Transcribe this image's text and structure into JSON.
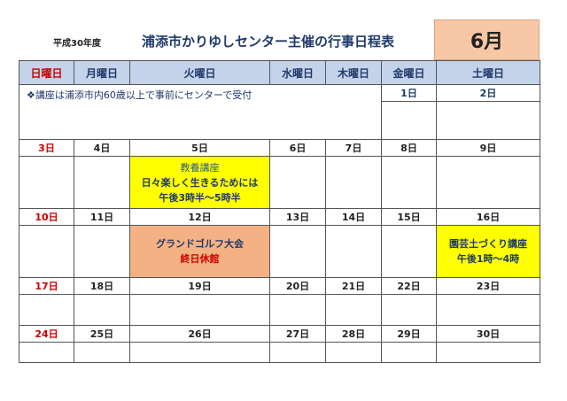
{
  "header": {
    "era": "平成30年度",
    "title": "浦添市かりゆしセンター主催の行事日程表",
    "month": "6月"
  },
  "weekdays": [
    "日曜日",
    "月曜日",
    "火曜日",
    "水曜日",
    "木曜日",
    "金曜日",
    "土曜日"
  ],
  "notice": "❖講座は浦添市内60歳以上で事前にセンターで受付",
  "weeks": [
    [
      "",
      "",
      "",
      "",
      "",
      "1日",
      "2日"
    ],
    [
      "3日",
      "4日",
      "5日",
      "6日",
      "7日",
      "8日",
      "9日"
    ],
    [
      "10日",
      "11日",
      "12日",
      "13日",
      "14日",
      "15日",
      "16日"
    ],
    [
      "17日",
      "18日",
      "19日",
      "20日",
      "21日",
      "22日",
      "23日"
    ],
    [
      "24日",
      "25日",
      "26日",
      "27日",
      "28日",
      "29日",
      "30日"
    ]
  ],
  "events": {
    "jun5": {
      "line1": "教養講座",
      "line2": "日々楽しく生きるためには",
      "line3": "午後3時半～5時半"
    },
    "jun12": {
      "line1": "グランドゴルフ大会",
      "line2": "終日休館"
    },
    "jun16": {
      "line1": "園芸土づくり講座",
      "line2": "午後1時～4時"
    }
  },
  "colors": {
    "header_row": "#c5d3ea",
    "month_box": "#f8c8a6",
    "event_yellow": "#ffff00",
    "event_orange": "#f4b183",
    "sunday_red": "#cc0000",
    "navy": "#1f3a6b"
  }
}
